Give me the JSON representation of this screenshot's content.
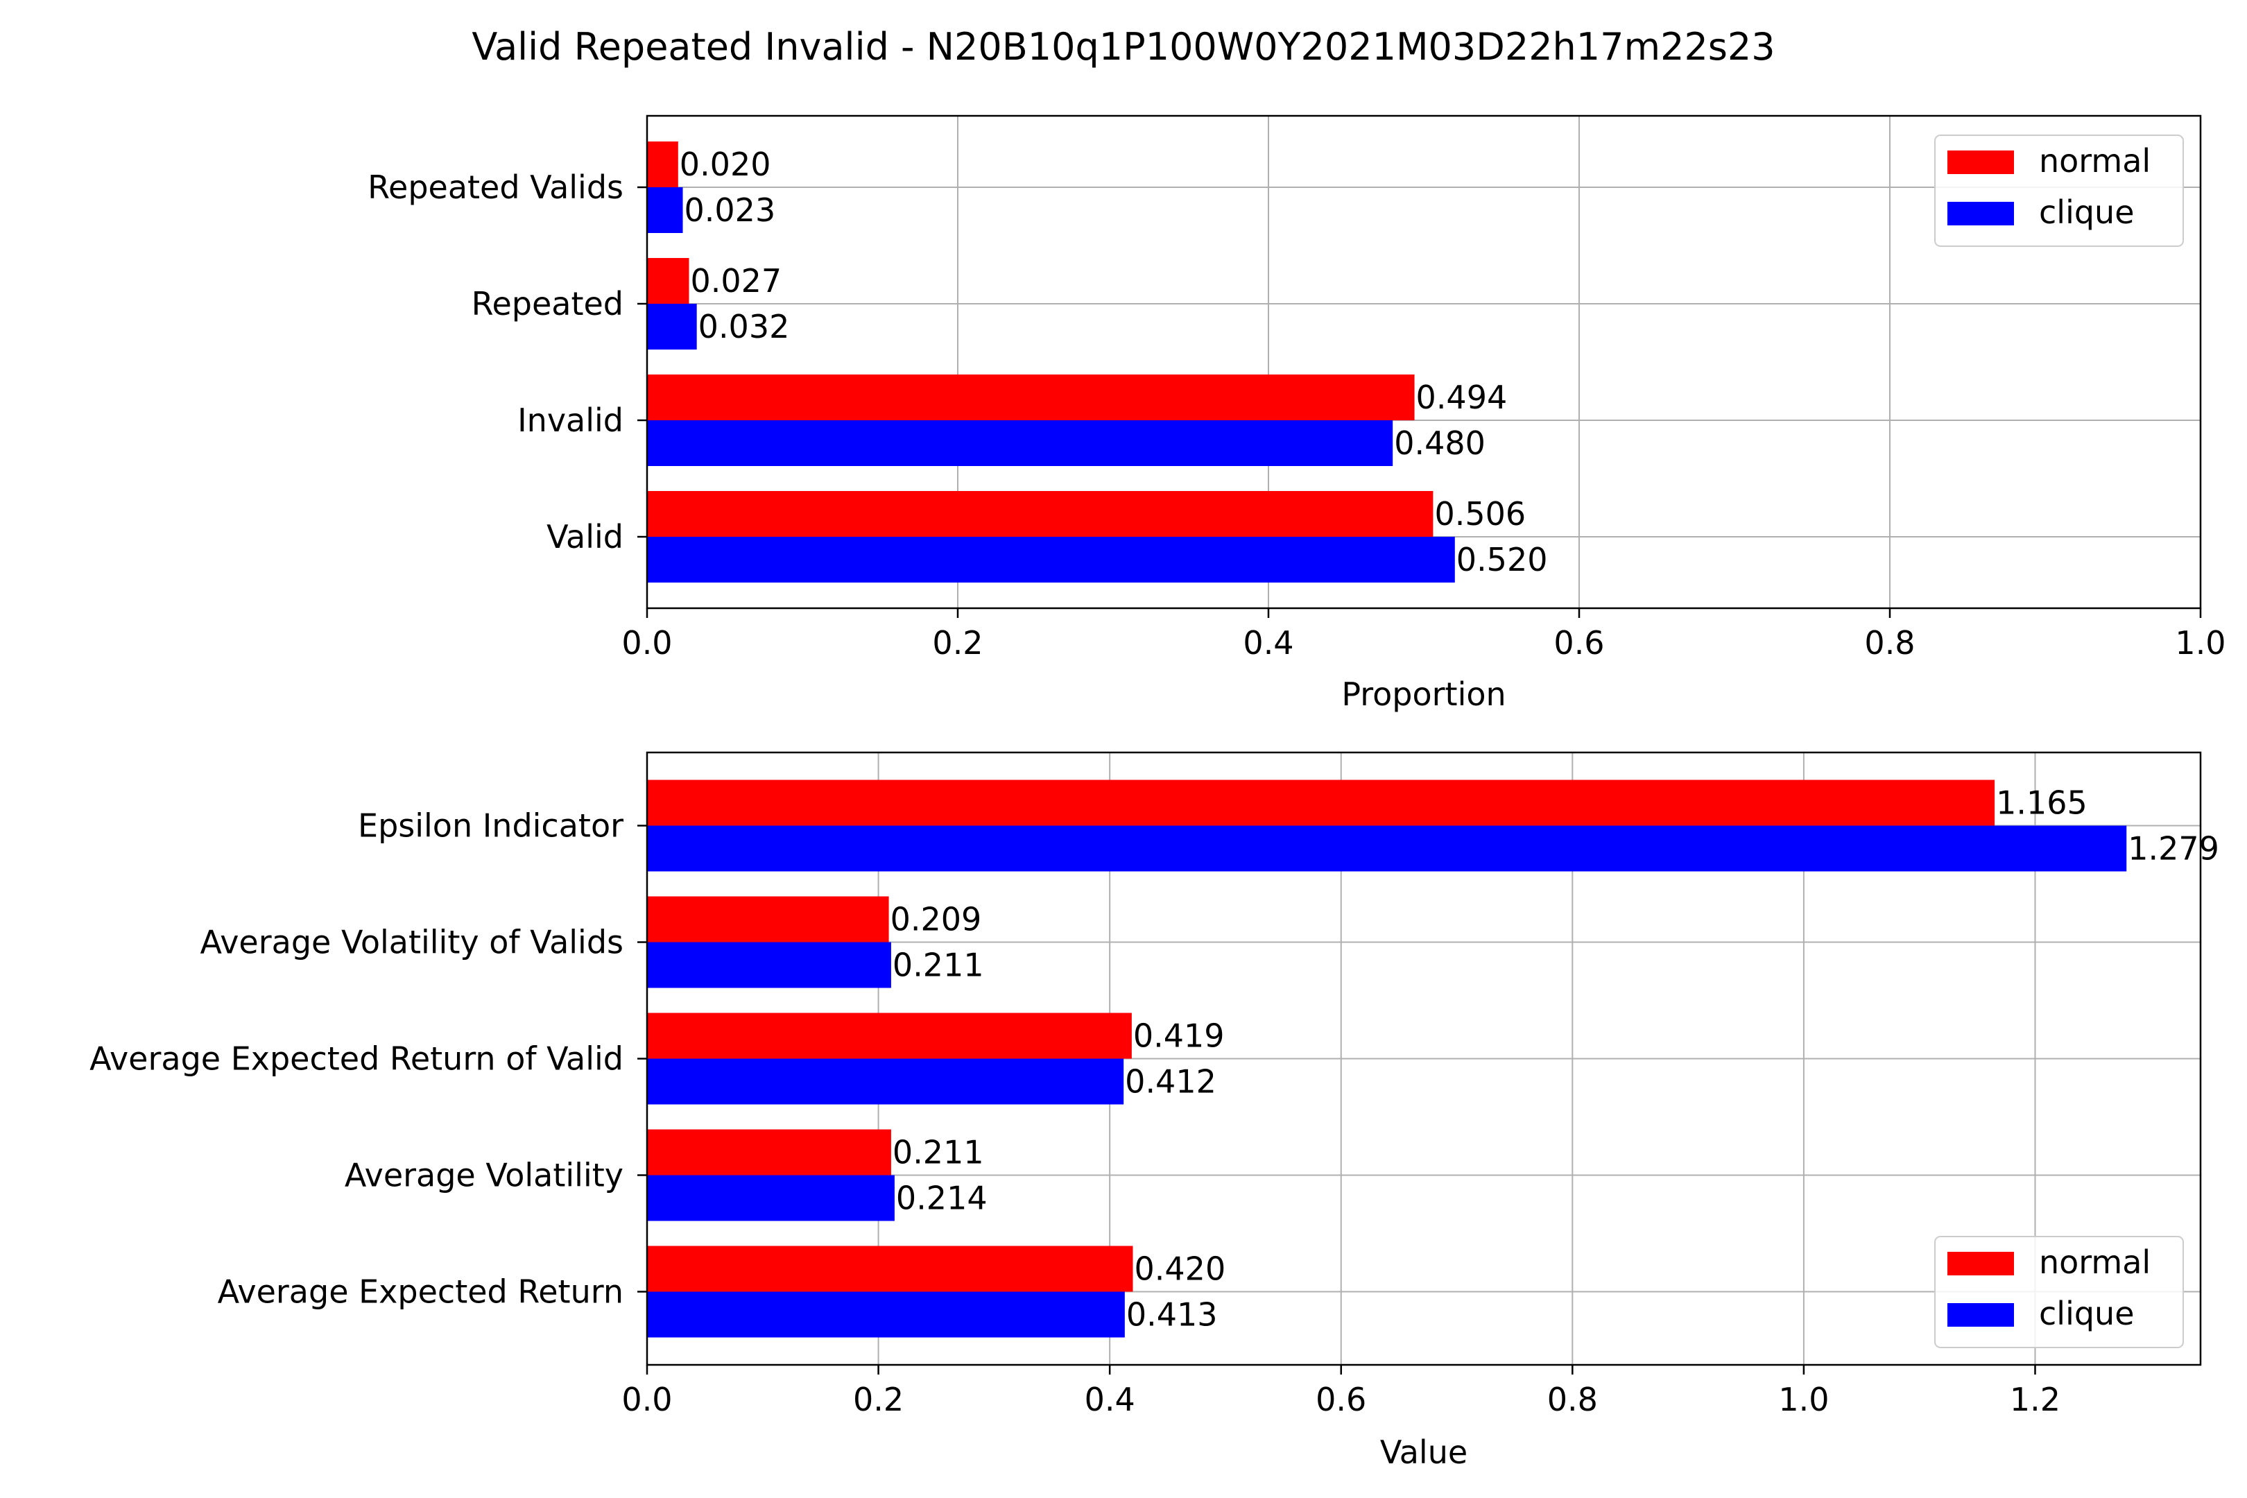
{
  "figure": {
    "title": "Valid Repeated Invalid - N20B10q1P100W0Y2021M03D22h17m22s23"
  },
  "chart_data": [
    {
      "type": "bar",
      "orientation": "horizontal",
      "categories": [
        "Valid",
        "Invalid",
        "Repeated",
        "Repeated Valids"
      ],
      "series": [
        {
          "name": "normal",
          "color": "#ff0000",
          "values": [
            0.506,
            0.494,
            0.027,
            0.02
          ],
          "labels": [
            "0.506",
            "0.494",
            "0.027",
            "0.020"
          ]
        },
        {
          "name": "clique",
          "color": "#0000ff",
          "values": [
            0.52,
            0.48,
            0.032,
            0.023
          ],
          "labels": [
            "0.520",
            "0.480",
            "0.032",
            "0.023"
          ]
        }
      ],
      "xlabel": "Proportion",
      "ylabel": "",
      "xlim": [
        0,
        1.0
      ],
      "xticks": [
        "0.0",
        "0.2",
        "0.4",
        "0.6",
        "0.8",
        "1.0"
      ],
      "grid": true,
      "legend_position": "top-right"
    },
    {
      "type": "bar",
      "orientation": "horizontal",
      "categories": [
        "Average Expected Return",
        "Average Volatility",
        "Average Expected Return of Valid",
        "Average Volatility of Valids",
        "Epsilon Indicator"
      ],
      "series": [
        {
          "name": "normal",
          "color": "#ff0000",
          "values": [
            0.42,
            0.211,
            0.419,
            0.209,
            1.165
          ],
          "labels": [
            "0.420",
            "0.211",
            "0.419",
            "0.209",
            "1.165"
          ]
        },
        {
          "name": "clique",
          "color": "#0000ff",
          "values": [
            0.413,
            0.214,
            0.412,
            0.211,
            1.279
          ],
          "labels": [
            "0.413",
            "0.214",
            "0.412",
            "0.211",
            "1.279"
          ]
        }
      ],
      "xlabel": "Value",
      "ylabel": "",
      "xlim": [
        0,
        1.343
      ],
      "xticks": [
        "0.0",
        "0.2",
        "0.4",
        "0.6",
        "0.8",
        "1.0",
        "1.2"
      ],
      "grid": true,
      "legend_position": "bottom-right"
    }
  ]
}
